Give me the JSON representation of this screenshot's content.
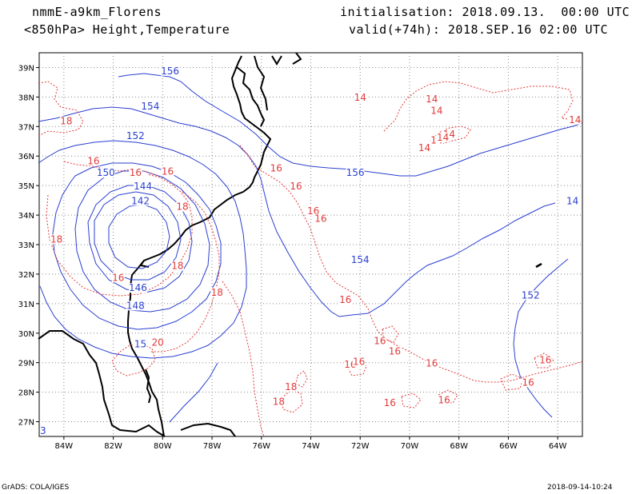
{
  "header": {
    "model": "nmmE-a9km_Florens",
    "field": "<850hPa> Height,Temperature",
    "init": "initialisation: 2018.09.13.  00:00 UTC",
    "valid": "valid(+74h): 2018.SEP.16 02:00 UTC"
  },
  "footer": {
    "credit": "GrADS: COLA/IGES",
    "timestamp": "2018-09-14-10:24"
  },
  "map": {
    "lon_range": [
      -85,
      -63
    ],
    "lat_range": [
      26.5,
      39.5
    ],
    "lon_ticks": [
      {
        "value": -84,
        "label": "84W"
      },
      {
        "value": -82,
        "label": "82W"
      },
      {
        "value": -80,
        "label": "80W"
      },
      {
        "value": -78,
        "label": "78W"
      },
      {
        "value": -76,
        "label": "76W"
      },
      {
        "value": -74,
        "label": "74W"
      },
      {
        "value": -72,
        "label": "72W"
      },
      {
        "value": -70,
        "label": "70W"
      },
      {
        "value": -68,
        "label": "68W"
      },
      {
        "value": -66,
        "label": "66W"
      },
      {
        "value": -64,
        "label": "64W"
      }
    ],
    "lat_ticks": [
      {
        "value": 39,
        "label": "39N"
      },
      {
        "value": 38,
        "label": "38N"
      },
      {
        "value": 37,
        "label": "37N"
      },
      {
        "value": 36,
        "label": "36N"
      },
      {
        "value": 35,
        "label": "35N"
      },
      {
        "value": 34,
        "label": "34N"
      },
      {
        "value": 33,
        "label": "33N"
      },
      {
        "value": 32,
        "label": "32N"
      },
      {
        "value": 31,
        "label": "31N"
      },
      {
        "value": 30,
        "label": "30N"
      },
      {
        "value": 29,
        "label": "29N"
      },
      {
        "value": 28,
        "label": "28N"
      },
      {
        "value": 27,
        "label": "27N"
      }
    ],
    "colors": {
      "height": "#2a3fd0",
      "temperature": "#e23a3a",
      "coast": "#000000",
      "grid": "#888888"
    },
    "grid": "dotted",
    "height_labels": [
      {
        "text": "156",
        "lon": -79.7,
        "lat": 38.8
      },
      {
        "text": "154",
        "lon": -80.5,
        "lat": 37.6
      },
      {
        "text": "152",
        "lon": -81.1,
        "lat": 36.6
      },
      {
        "text": "150",
        "lon": -82.3,
        "lat": 35.35
      },
      {
        "text": "144",
        "lon": -80.8,
        "lat": 34.9
      },
      {
        "text": "142",
        "lon": -80.9,
        "lat": 34.4
      },
      {
        "text": "146",
        "lon": -81.0,
        "lat": 31.45
      },
      {
        "text": "148",
        "lon": -81.1,
        "lat": 30.85
      },
      {
        "text": "15",
        "lon": -80.9,
        "lat": 29.55
      },
      {
        "text": "156",
        "lon": -72.2,
        "lat": 35.35
      },
      {
        "text": "154",
        "lon": -72.0,
        "lat": 32.4
      },
      {
        "text": "152",
        "lon": -65.1,
        "lat": 31.2
      },
      {
        "text": "14",
        "lon": -63.4,
        "lat": 34.4
      }
    ],
    "temp_labels": [
      {
        "text": "18",
        "lon": -83.9,
        "lat": 37.1
      },
      {
        "text": "16",
        "lon": -82.8,
        "lat": 35.75
      },
      {
        "text": "16",
        "lon": -79.8,
        "lat": 35.4
      },
      {
        "text": "16",
        "lon": -81.1,
        "lat": 35.35
      },
      {
        "text": "18",
        "lon": -79.2,
        "lat": 34.2
      },
      {
        "text": "18",
        "lon": -84.3,
        "lat": 33.1
      },
      {
        "text": "18",
        "lon": -79.4,
        "lat": 32.2
      },
      {
        "text": "16",
        "lon": -81.8,
        "lat": 31.8
      },
      {
        "text": "18",
        "lon": -77.8,
        "lat": 31.3
      },
      {
        "text": "20",
        "lon": -80.2,
        "lat": 29.6
      },
      {
        "text": "14",
        "lon": -72.0,
        "lat": 37.9
      },
      {
        "text": "14",
        "lon": -69.1,
        "lat": 37.85
      },
      {
        "text": "14",
        "lon": -68.9,
        "lat": 37.45
      },
      {
        "text": "14",
        "lon": -68.4,
        "lat": 36.65
      },
      {
        "text": "14",
        "lon": -68.9,
        "lat": 36.45
      },
      {
        "text": "14",
        "lon": -68.65,
        "lat": 36.55
      },
      {
        "text": "14",
        "lon": -69.4,
        "lat": 36.2
      },
      {
        "text": "14",
        "lon": -63.3,
        "lat": 37.15
      },
      {
        "text": "16",
        "lon": -75.4,
        "lat": 35.5
      },
      {
        "text": "16",
        "lon": -74.6,
        "lat": 34.9
      },
      {
        "text": "16",
        "lon": -73.9,
        "lat": 34.05
      },
      {
        "text": "16",
        "lon": -73.6,
        "lat": 33.8
      },
      {
        "text": "16",
        "lon": -72.6,
        "lat": 31.05
      },
      {
        "text": "16",
        "lon": -71.2,
        "lat": 29.65
      },
      {
        "text": "16",
        "lon": -70.6,
        "lat": 29.3
      },
      {
        "text": "16",
        "lon": -72.4,
        "lat": 28.85
      },
      {
        "text": "16",
        "lon": -72.05,
        "lat": 28.95
      },
      {
        "text": "16",
        "lon": -69.1,
        "lat": 28.9
      },
      {
        "text": "16",
        "lon": -70.8,
        "lat": 27.55
      },
      {
        "text": "16",
        "lon": -68.6,
        "lat": 27.65
      },
      {
        "text": "16",
        "lon": -64.5,
        "lat": 29.0
      },
      {
        "text": "16",
        "lon": -65.2,
        "lat": 28.25
      },
      {
        "text": "18",
        "lon": -74.8,
        "lat": 28.1
      },
      {
        "text": "18",
        "lon": -75.3,
        "lat": 27.6
      }
    ],
    "corner_mark": "3"
  }
}
